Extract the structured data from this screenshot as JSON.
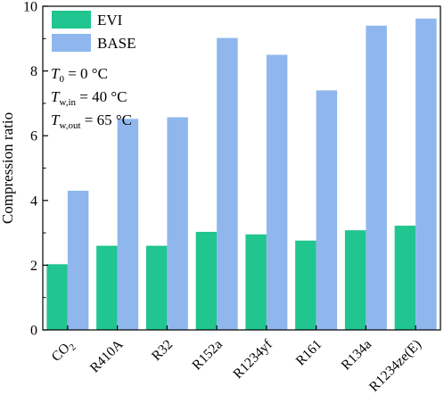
{
  "chart_data": {
    "type": "bar",
    "categories": [
      "CO2",
      "R410A",
      "R32",
      "R152a",
      "R1234yf",
      "R161",
      "R134a",
      "R1234ze(E)"
    ],
    "series": [
      {
        "name": "EVI",
        "color": "#21c58f",
        "values": [
          2.03,
          2.6,
          2.6,
          3.03,
          2.95,
          2.76,
          3.08,
          3.22
        ]
      },
      {
        "name": "BASE",
        "color": "#8fb7ee",
        "values": [
          4.3,
          6.52,
          6.57,
          9.02,
          8.5,
          7.4,
          9.4,
          9.62
        ]
      }
    ],
    "ylabel": "Compression ratio",
    "ylim": [
      0,
      10
    ],
    "yticks": [
      0,
      2,
      4,
      6,
      8,
      10
    ],
    "legend_position": "top-left",
    "grid": false,
    "annotations": [
      {
        "symbol": "T",
        "sub": "0",
        "text": " = 0 °C"
      },
      {
        "symbol": "T",
        "sub": "w,in",
        "text": " = 40 °C"
      },
      {
        "symbol": "T",
        "sub": "w,out",
        "text": " = 65 °C"
      }
    ]
  }
}
